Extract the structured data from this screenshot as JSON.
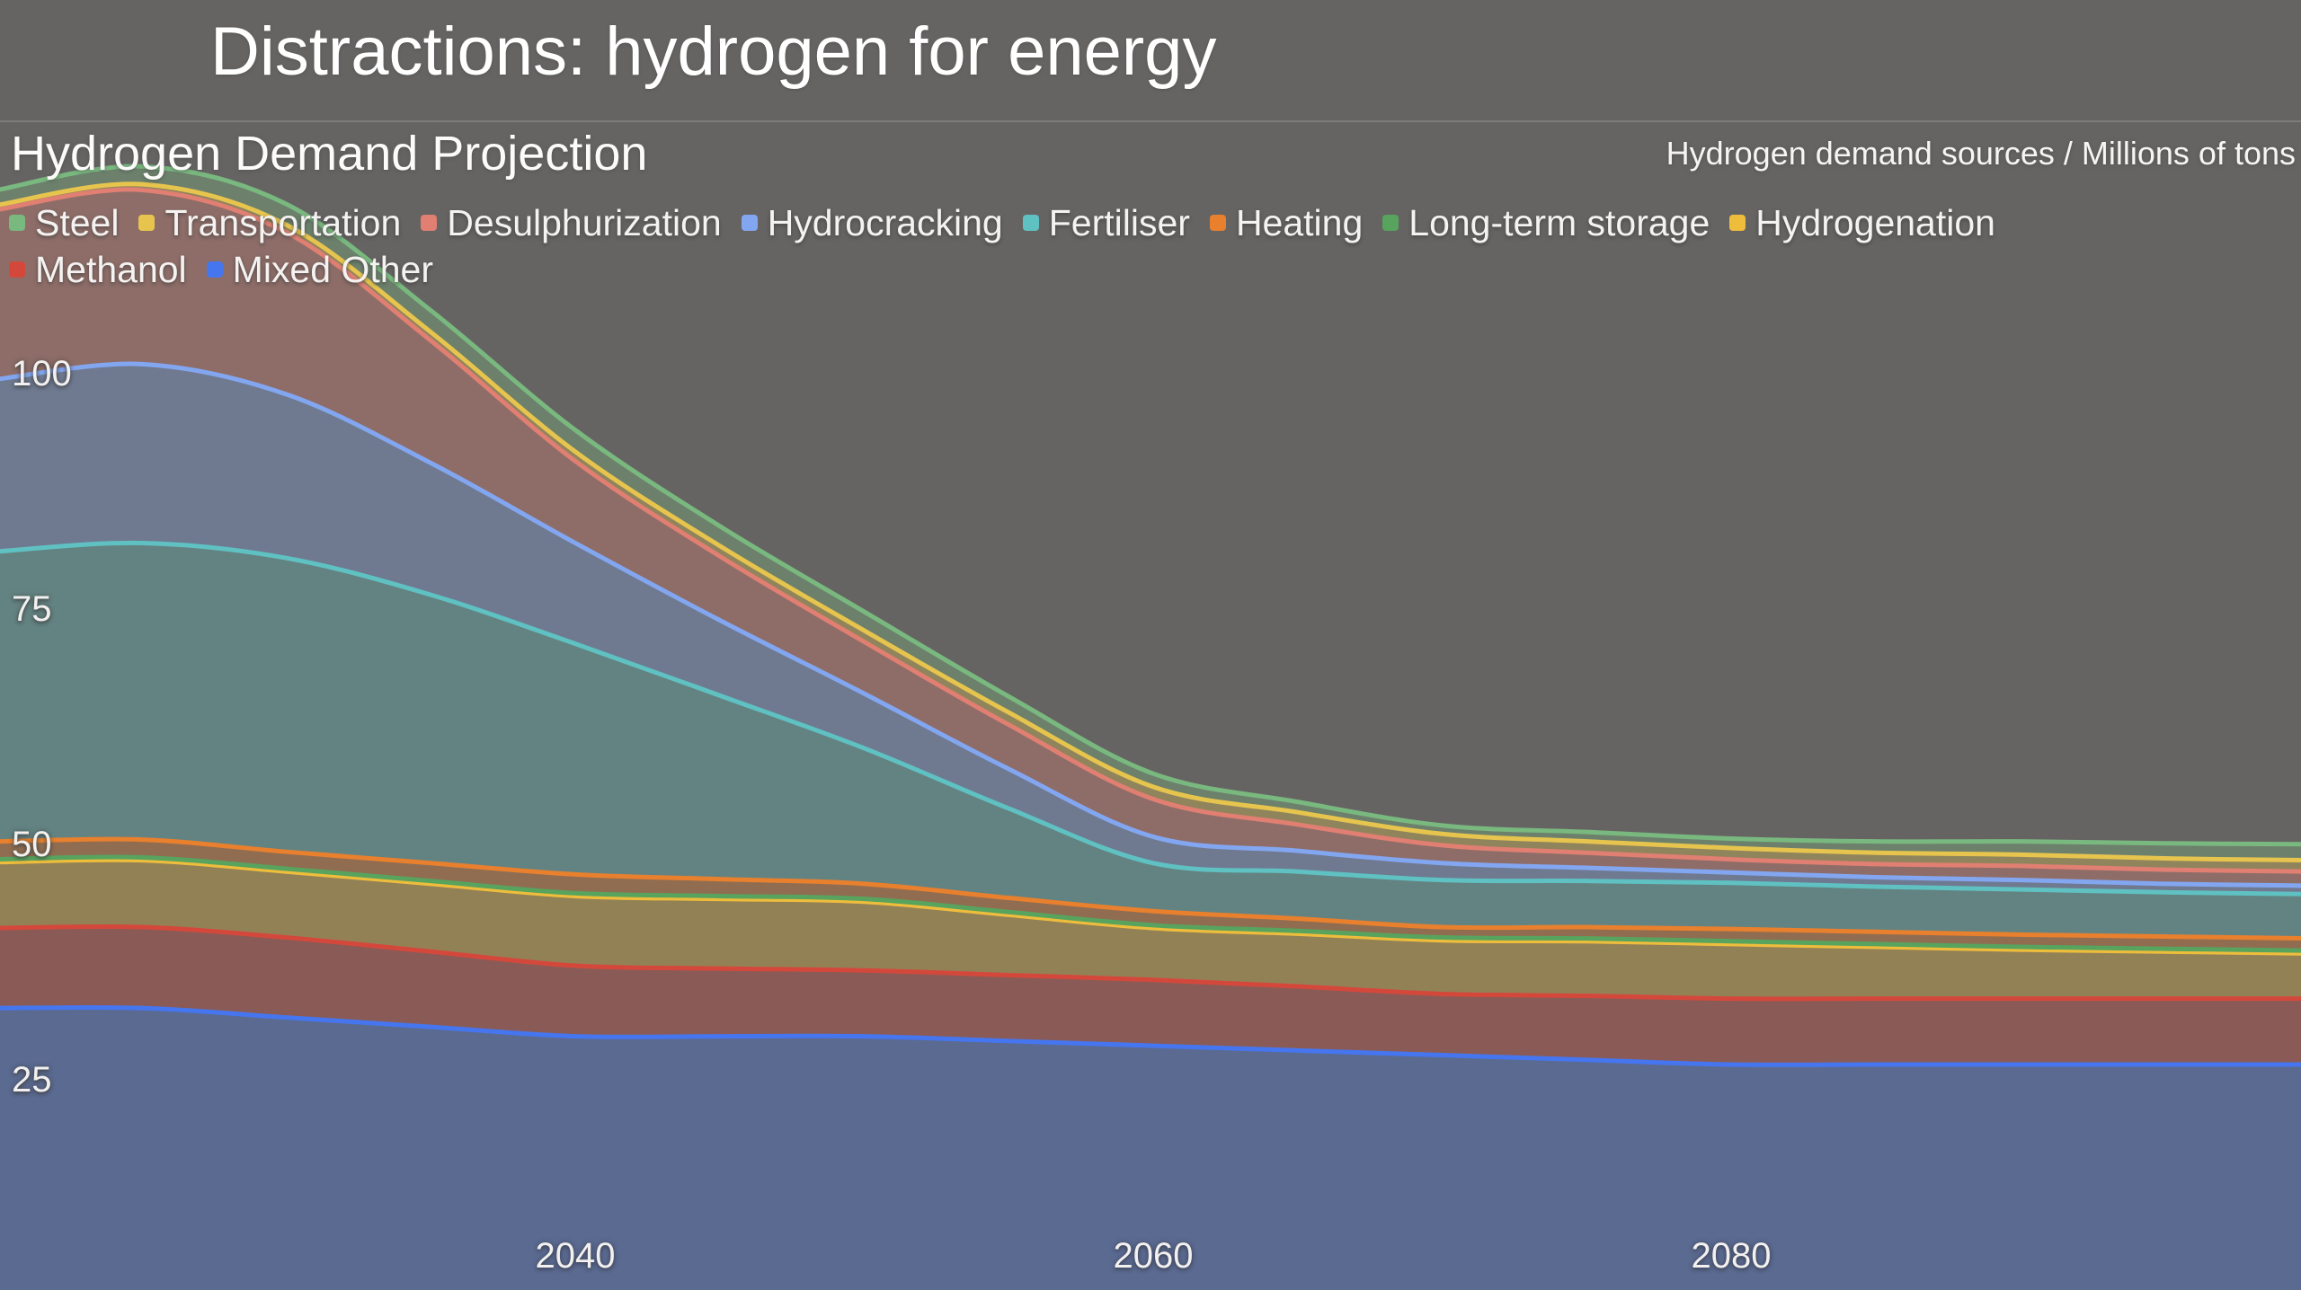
{
  "header": {
    "title": "Distractions: hydrogen for energy"
  },
  "chart_header": {
    "title": "Hydrogen Demand Projection",
    "units_label": "Hydrogen demand sources / Millions of tons"
  },
  "legend": {
    "rows": [
      [
        "Steel",
        "Transportation",
        "Desulphurization",
        "Hydrocracking",
        "Fertiliser",
        "Heating",
        "Long-term storage",
        "Hydrogenation"
      ],
      [
        "Methanol",
        "Mixed Other"
      ]
    ]
  },
  "chart_data": {
    "type": "area",
    "stacked": true,
    "title": "Hydrogen Demand Projection",
    "units": "Millions of tons",
    "background": "#666463",
    "grid": false,
    "legend_position": "top",
    "x_domain": [
      2020,
      2100
    ],
    "y_domain": [
      0,
      125
    ],
    "x_ticks": [
      2040,
      2060,
      2080
    ],
    "y_ticks": [
      25,
      50,
      75,
      100
    ],
    "x": [
      2020,
      2025,
      2030,
      2035,
      2040,
      2045,
      2050,
      2055,
      2060,
      2065,
      2070,
      2075,
      2080,
      2085,
      2090,
      2095,
      2100
    ],
    "stack_order_bottom_to_top": [
      "Mixed Other",
      "Methanol",
      "Hydrogenation",
      "Long-term storage",
      "Heating",
      "Fertiliser",
      "Hydrocracking",
      "Desulphurization",
      "Transportation",
      "Steel"
    ],
    "series": [
      {
        "name": "Steel",
        "color": "#79b87e",
        "values": [
          1.6,
          1.9,
          2.2,
          2.3,
          2.3,
          2.1,
          2.0,
          1.7,
          1.4,
          1.1,
          0.9,
          1.0,
          1.0,
          1.2,
          1.4,
          1.6,
          1.7
        ]
      },
      {
        "name": "Transportation",
        "color": "#e6c44e",
        "values": [
          0.5,
          0.6,
          0.8,
          0.9,
          1.0,
          1.1,
          1.2,
          1.3,
          1.3,
          1.3,
          1.2,
          1.2,
          1.2,
          1.2,
          1.2,
          1.2,
          1.2
        ]
      },
      {
        "name": "Desulphurization",
        "color": "#e07f72",
        "values": [
          18.0,
          18.5,
          17.2,
          13.0,
          8.7,
          6.8,
          5.5,
          4.7,
          4.0,
          2.8,
          1.9,
          1.6,
          1.4,
          1.4,
          1.5,
          1.5,
          1.5
        ]
      },
      {
        "name": "Hydrocracking",
        "color": "#83a6f0",
        "values": [
          18.3,
          19.0,
          17.4,
          14.0,
          10.7,
          8.0,
          5.8,
          4.2,
          2.8,
          2.2,
          1.8,
          1.4,
          1.1,
          1.0,
          1.0,
          0.9,
          0.9
        ]
      },
      {
        "name": "Fertiliser",
        "color": "#5fc1c1",
        "values": [
          30.8,
          31.5,
          31.2,
          28.5,
          24.5,
          19.5,
          14.4,
          9.5,
          5.1,
          5.0,
          5.0,
          4.9,
          4.9,
          4.8,
          4.8,
          4.7,
          4.7
        ]
      },
      {
        "name": "Heating",
        "color": "#e8802e",
        "values": [
          1.9,
          1.9,
          1.8,
          1.9,
          2.0,
          1.8,
          1.6,
          1.5,
          1.5,
          1.3,
          1.1,
          1.2,
          1.3,
          1.3,
          1.3,
          1.3,
          1.3
        ]
      },
      {
        "name": "Long-term storage",
        "color": "#58a35e",
        "values": [
          0.3,
          0.3,
          0.3,
          0.3,
          0.3,
          0.3,
          0.3,
          0.3,
          0.3,
          0.3,
          0.3,
          0.3,
          0.3,
          0.3,
          0.3,
          0.3,
          0.3
        ]
      },
      {
        "name": "Hydrogenation",
        "color": "#efbd3c",
        "values": [
          7.0,
          7.1,
          7.0,
          7.2,
          7.4,
          7.4,
          7.3,
          6.4,
          5.5,
          5.6,
          5.7,
          5.8,
          5.8,
          5.5,
          5.2,
          5.0,
          4.8
        ]
      },
      {
        "name": "Methanol",
        "color": "#d4483c",
        "values": [
          8.5,
          8.6,
          8.5,
          8.0,
          7.5,
          7.2,
          7.0,
          7.0,
          7.0,
          6.8,
          6.5,
          6.8,
          7.0,
          7.0,
          7.0,
          7.0,
          7.0
        ]
      },
      {
        "name": "Mixed Other",
        "color": "#4576f0",
        "values": [
          33,
          33,
          32,
          31,
          30,
          30,
          30,
          29.5,
          29,
          28.5,
          28,
          27.5,
          27,
          27,
          27,
          27,
          27
        ]
      }
    ]
  }
}
